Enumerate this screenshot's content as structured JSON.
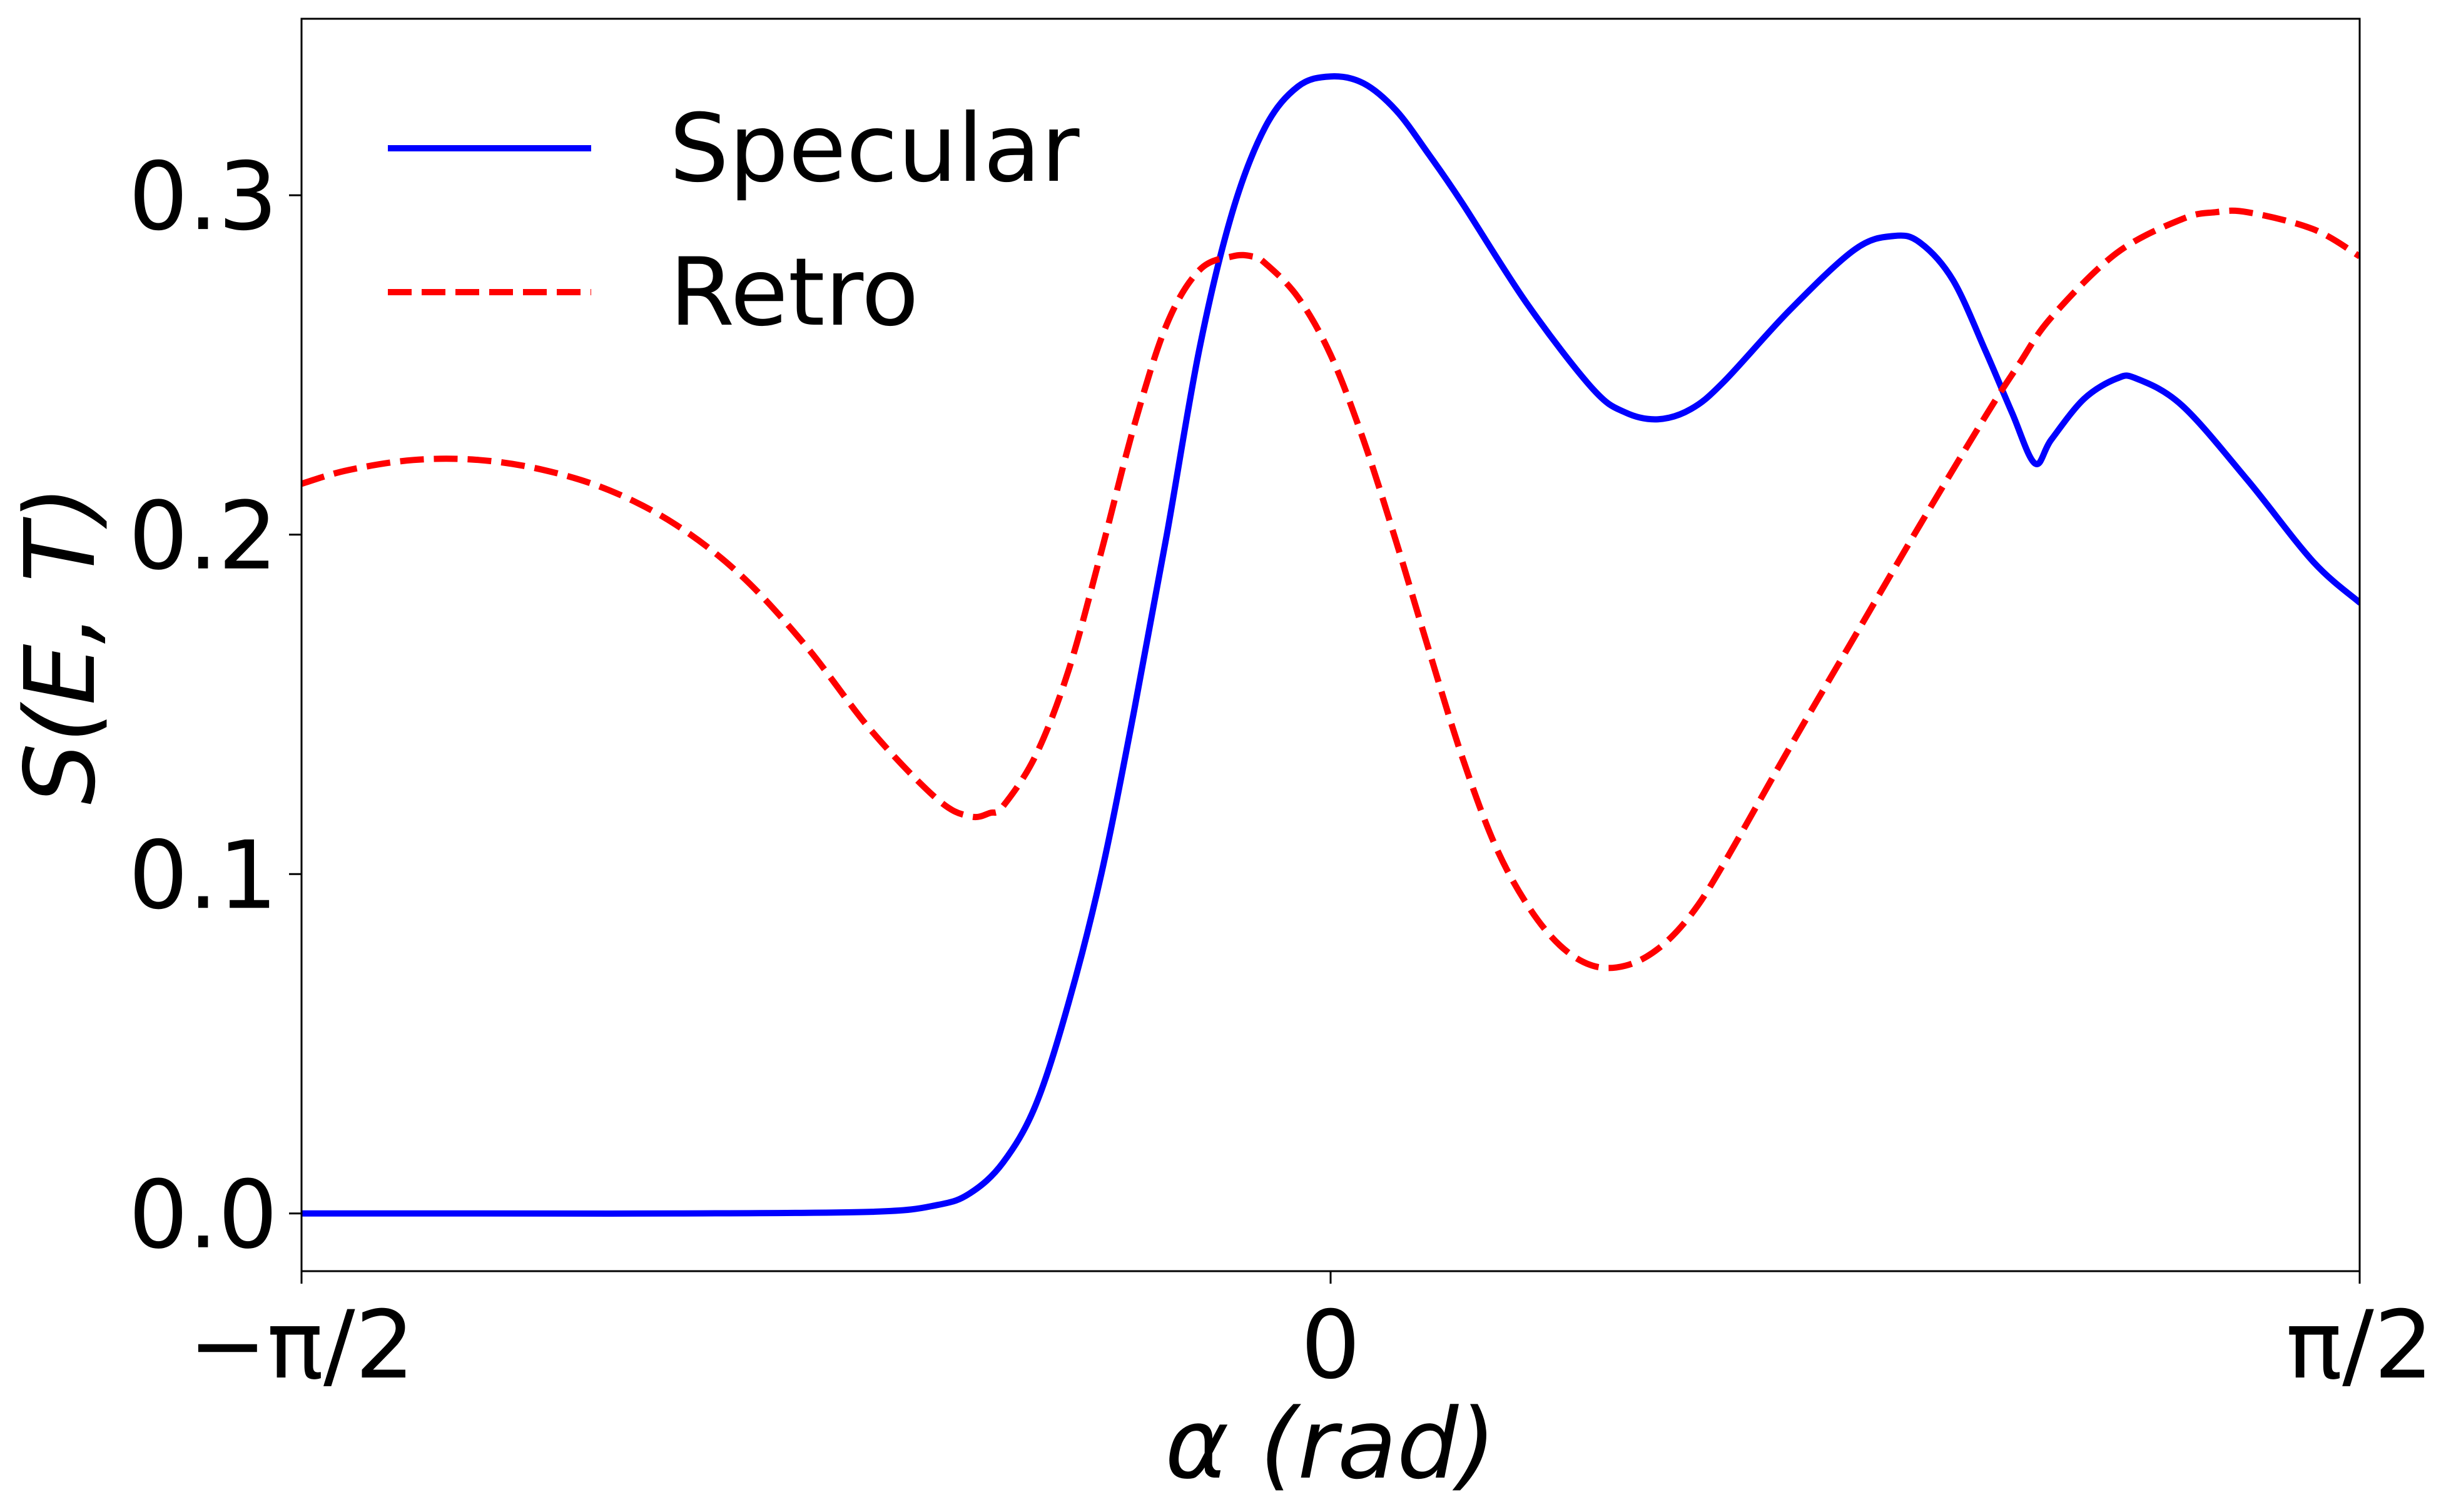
{
  "chart_data": {
    "type": "line",
    "xlabel": "α (rad)",
    "ylabel": "S(E, T)",
    "xlim": [
      -1.5708,
      1.5708
    ],
    "ylim": [
      -0.017,
      0.352
    ],
    "x_ticks": [
      {
        "value": -1.5708,
        "label": "−π/2"
      },
      {
        "value": 0,
        "label": "0"
      },
      {
        "value": 1.5708,
        "label": "π/2"
      }
    ],
    "y_ticks": [
      {
        "value": 0.0,
        "label": "0.0"
      },
      {
        "value": 0.1,
        "label": "0.1"
      },
      {
        "value": 0.2,
        "label": "0.2"
      },
      {
        "value": 0.3,
        "label": "0.3"
      }
    ],
    "grid": false,
    "legend": {
      "position": "top-left",
      "entries": [
        {
          "label": "Specular",
          "style": "solid",
          "color": "#0000ff"
        },
        {
          "label": "Retro",
          "style": "dashed",
          "color": "#ff0000"
        }
      ]
    },
    "series": [
      {
        "name": "Specular",
        "color": "#0000ff",
        "style": "solid",
        "x": [
          -1.5708,
          -1.3,
          -1.0,
          -0.7,
          -0.6,
          -0.55,
          -0.5,
          -0.45,
          -0.4,
          -0.35,
          -0.3,
          -0.25,
          -0.2,
          -0.15,
          -0.1,
          -0.05,
          0.0,
          0.05,
          0.1,
          0.15,
          0.2,
          0.3,
          0.4,
          0.45,
          0.5,
          0.55,
          0.6,
          0.7,
          0.8,
          0.86,
          0.9,
          0.95,
          1.0,
          1.04,
          1.075,
          1.1,
          1.15,
          1.2,
          1.23,
          1.3,
          1.4,
          1.5,
          1.5708
        ],
        "values": [
          0.0,
          0.0,
          0.0,
          0.0005,
          0.0025,
          0.006,
          0.015,
          0.032,
          0.062,
          0.1,
          0.148,
          0.2,
          0.255,
          0.295,
          0.32,
          0.332,
          0.335,
          0.333,
          0.325,
          0.312,
          0.298,
          0.268,
          0.243,
          0.236,
          0.234,
          0.237,
          0.245,
          0.266,
          0.284,
          0.288,
          0.286,
          0.275,
          0.254,
          0.236,
          0.221,
          0.228,
          0.24,
          0.246,
          0.246,
          0.238,
          0.216,
          0.192,
          0.18
        ]
      },
      {
        "name": "Retro",
        "color": "#ff0000",
        "style": "dashed",
        "x": [
          -1.5708,
          -1.5,
          -1.4,
          -1.3,
          -1.2,
          -1.1,
          -1.0,
          -0.9,
          -0.8,
          -0.7,
          -0.6,
          -0.55,
          -0.52,
          -0.5,
          -0.45,
          -0.4,
          -0.35,
          -0.3,
          -0.25,
          -0.2,
          -0.15,
          -0.12,
          -0.1,
          -0.05,
          0.0,
          0.05,
          0.1,
          0.15,
          0.2,
          0.25,
          0.3,
          0.35,
          0.4,
          0.45,
          0.5,
          0.55,
          0.6,
          0.7,
          0.8,
          0.9,
          1.0,
          1.05,
          1.1,
          1.2,
          1.3,
          1.35,
          1.4,
          1.5,
          1.5708
        ],
        "values": [
          0.215,
          0.219,
          0.222,
          0.222,
          0.219,
          0.213,
          0.203,
          0.188,
          0.167,
          0.142,
          0.122,
          0.117,
          0.118,
          0.12,
          0.135,
          0.16,
          0.195,
          0.232,
          0.262,
          0.278,
          0.282,
          0.282,
          0.28,
          0.27,
          0.253,
          0.228,
          0.198,
          0.166,
          0.135,
          0.109,
          0.091,
          0.079,
          0.073,
          0.073,
          0.078,
          0.088,
          0.103,
          0.137,
          0.17,
          0.203,
          0.235,
          0.25,
          0.264,
          0.283,
          0.293,
          0.295,
          0.295,
          0.29,
          0.282
        ]
      }
    ]
  }
}
